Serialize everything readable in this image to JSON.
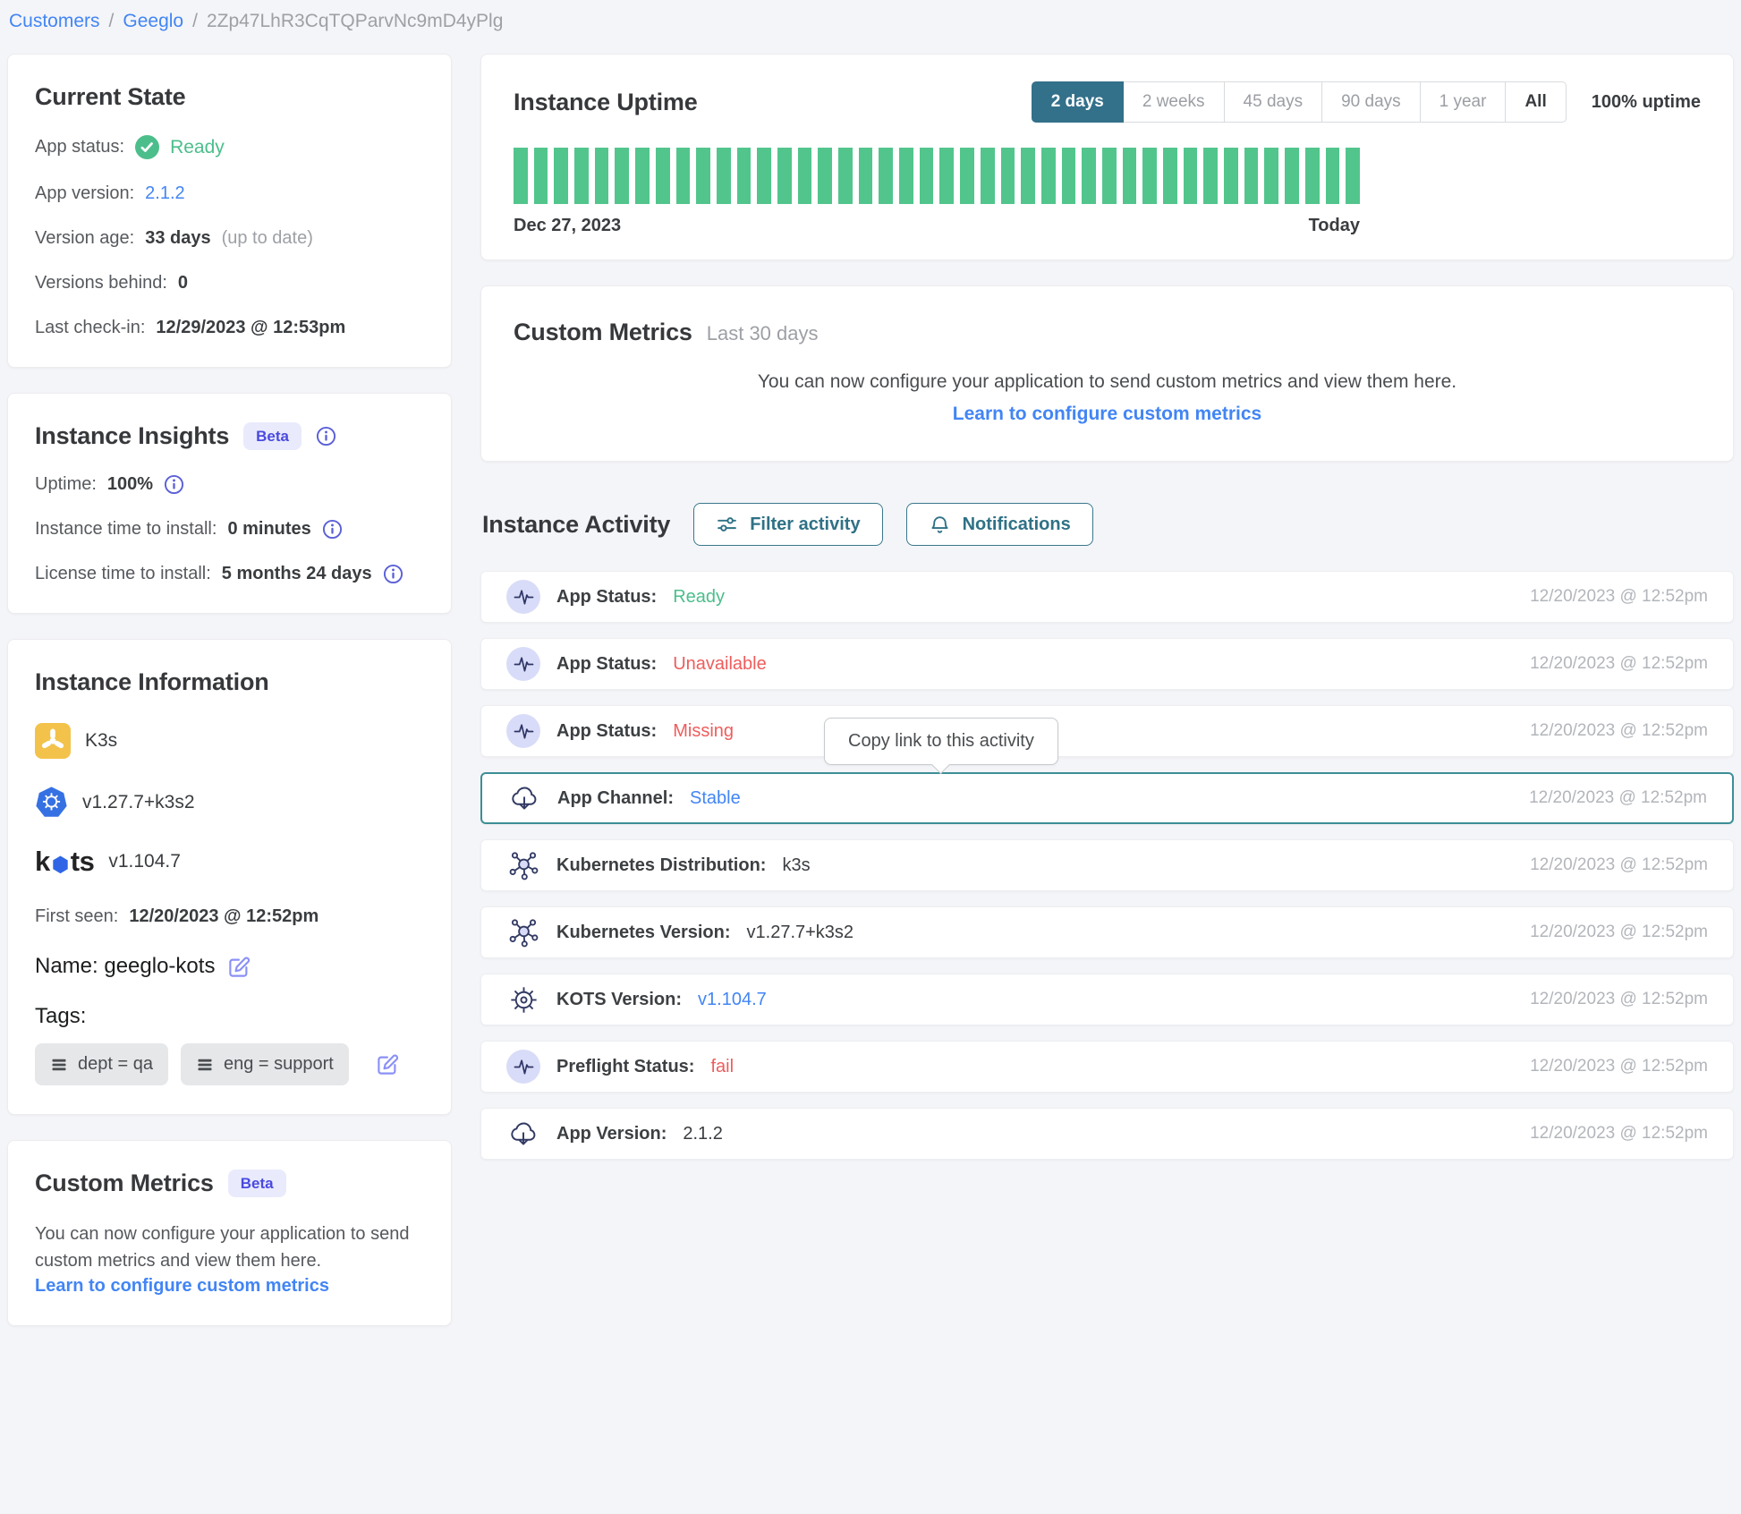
{
  "breadcrumb": {
    "customers": "Customers",
    "separator": "/",
    "customer": "Geeglo",
    "instance_id": "2Zp47LhR3CqTQParvNc9mD4yPlg"
  },
  "colors": {
    "accent_teal": "#33708a",
    "uptime_green": "#52c58d",
    "status_green": "#4cbe8b",
    "status_red": "#ef5c5c",
    "link_blue": "#4285f4",
    "beta_purple": "#4a4ae0"
  },
  "current_state": {
    "title": "Current State",
    "app_status_label": "App status:",
    "app_status_value": "Ready",
    "app_version_label": "App version:",
    "app_version_value": "2.1.2",
    "version_age_label": "Version age:",
    "version_age_value": "33 days",
    "version_age_note": "(up to date)",
    "versions_behind_label": "Versions behind:",
    "versions_behind_value": "0",
    "last_checkin_label": "Last check-in:",
    "last_checkin_value": "12/29/2023 @ 12:53pm"
  },
  "instance_insights": {
    "title": "Instance Insights",
    "beta_badge": "Beta",
    "uptime_label": "Uptime:",
    "uptime_value": "100%",
    "instance_tti_label": "Instance time to install:",
    "instance_tti_value": "0 minutes",
    "license_tti_label": "License time to install:",
    "license_tti_value": "5 months 24 days"
  },
  "instance_information": {
    "title": "Instance Information",
    "distribution_label": "K3s",
    "k8s_version": "v1.27.7+k3s2",
    "kots_logo": {
      "pre": "k",
      "post": "ts"
    },
    "kots_version": "v1.104.7",
    "first_seen_label": "First seen:",
    "first_seen_value": "12/20/2023 @ 12:52pm",
    "name_label": "Name:",
    "name_value": "geeglo-kots",
    "tags_label": "Tags:",
    "tags": [
      "dept = qa",
      "eng = support"
    ]
  },
  "custom_metrics_card": {
    "title": "Custom Metrics",
    "beta_badge": "Beta",
    "body": "You can now configure your application to send custom metrics and view them here.",
    "link": "Learn to configure custom metrics"
  },
  "uptime": {
    "title": "Instance Uptime",
    "ranges": [
      "2 days",
      "2 weeks",
      "45 days",
      "90 days",
      "1 year",
      "All"
    ],
    "selected_range": "2 days",
    "summary": "100% uptime",
    "start_label": "Dec 27, 2023",
    "end_label": "Today",
    "bars_count": 42,
    "bar_uptime_percent": 100,
    "bar_color": "#52c58d"
  },
  "custom_metrics_panel": {
    "title": "Custom Metrics",
    "subtitle": "Last 30 days",
    "body": "You can now configure your application to send custom metrics and view them here.",
    "link": "Learn to configure custom metrics"
  },
  "activity": {
    "title": "Instance Activity",
    "filter_button": "Filter activity",
    "notifications_button": "Notifications",
    "tooltip": "Copy link to this activity",
    "rows": [
      {
        "icon": "pulse",
        "label": "App Status:",
        "value": "Ready",
        "value_color": "green",
        "timestamp": "12/20/2023 @ 12:52pm"
      },
      {
        "icon": "pulse",
        "label": "App Status:",
        "value": "Unavailable",
        "value_color": "red",
        "timestamp": "12/20/2023 @ 12:52pm"
      },
      {
        "icon": "pulse",
        "label": "App Status:",
        "value": "Missing",
        "value_color": "red",
        "timestamp": "12/20/2023 @ 12:52pm"
      },
      {
        "icon": "cloud-download",
        "label": "App Channel:",
        "value": "Stable",
        "value_color": "blue",
        "timestamp": "12/20/2023 @ 12:52pm",
        "selected": true,
        "tooltip": true
      },
      {
        "icon": "kubernetes-nodes",
        "label": "Kubernetes Distribution:",
        "value": "k3s",
        "value_color": "dark",
        "timestamp": "12/20/2023 @ 12:52pm"
      },
      {
        "icon": "kubernetes-nodes",
        "label": "Kubernetes Version:",
        "value": "v1.27.7+k3s2",
        "value_color": "dark",
        "timestamp": "12/20/2023 @ 12:52pm"
      },
      {
        "icon": "helm-wheel",
        "label": "KOTS Version:",
        "value": "v1.104.7",
        "value_color": "blue",
        "timestamp": "12/20/2023 @ 12:52pm"
      },
      {
        "icon": "pulse",
        "label": "Preflight Status:",
        "value": "fail",
        "value_color": "red",
        "timestamp": "12/20/2023 @ 12:52pm"
      },
      {
        "icon": "cloud-download",
        "label": "App Version:",
        "value": "2.1.2",
        "value_color": "dark",
        "timestamp": "12/20/2023 @ 12:52pm"
      }
    ]
  }
}
